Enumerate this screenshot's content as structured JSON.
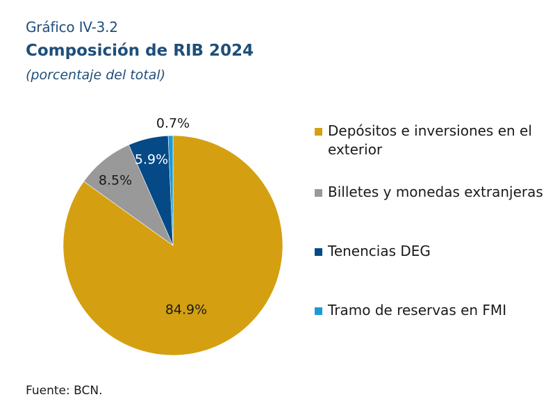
{
  "header": {
    "chart_number": "Gráfico IV-3.2",
    "title": "Composición de RIB 2024",
    "subtitle": "(porcentaje del total)"
  },
  "source": "Fuente: BCN.",
  "colors": {
    "title": "#1f4e79",
    "depositos": "#d4a011",
    "billetes": "#999999",
    "deg": "#054a86",
    "fmi": "#1c9ad6"
  },
  "chart_data": {
    "type": "pie",
    "title": "Composición de RIB 2024",
    "subtitle": "(porcentaje del total)",
    "start_angle_deg": 0,
    "direction": "clockwise",
    "slices": [
      {
        "label": "Depósitos e inversiones en el exterior",
        "value": 84.9,
        "data_label": "84.9%",
        "color": "#d4a011"
      },
      {
        "label": "Billetes y monedas extranjeras",
        "value": 8.5,
        "data_label": "8.5%",
        "color": "#999999"
      },
      {
        "label": "Tenencias DEG",
        "value": 5.9,
        "data_label": "5.9%",
        "color": "#054a86"
      },
      {
        "label": "Tramo de reservas en FMI",
        "value": 0.7,
        "data_label": "0.7%",
        "color": "#1c9ad6"
      }
    ],
    "legend_position": "right"
  }
}
